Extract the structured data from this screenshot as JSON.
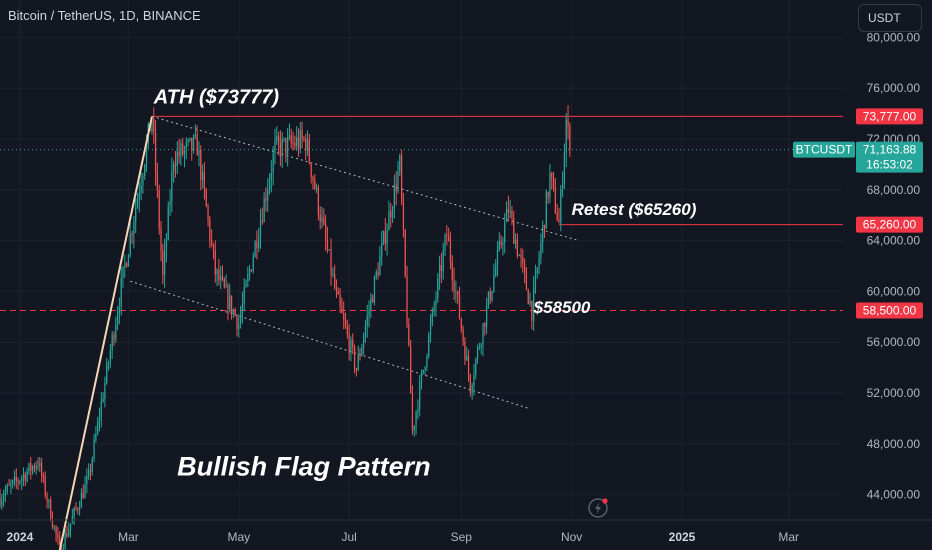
{
  "header": {
    "title": "Bitcoin / TetherUS, 1D, BINANCE"
  },
  "currency_button": {
    "label": "USDT"
  },
  "colors": {
    "background": "#131722",
    "up": "#26a69a",
    "down": "#ef5350",
    "level": "#f23645",
    "text": "#d1d4dc",
    "pole": "#f5d5b5"
  },
  "icons": [
    "lightning-icon"
  ],
  "chart_data": {
    "type": "candlestick",
    "symbol": "BTCUSDT",
    "interval": "1D",
    "exchange": "BINANCE",
    "x_range": [
      "2023-12-21",
      "2025-03-31"
    ],
    "y_range": [
      42000,
      82000
    ],
    "y_ticks": [
      "44,000.00",
      "48,000.00",
      "52,000.00",
      "56,000.00",
      "60,000.00",
      "64,000.00",
      "68,000.00",
      "72,000.00",
      "76,000.00",
      "80,000.00"
    ],
    "x_ticks": [
      {
        "label": "2024",
        "date": "2024-01-01",
        "bold": true
      },
      {
        "label": "Mar",
        "date": "2024-03-01"
      },
      {
        "label": "May",
        "date": "2024-05-01"
      },
      {
        "label": "Jul",
        "date": "2024-07-01"
      },
      {
        "label": "Sep",
        "date": "2024-09-01"
      },
      {
        "label": "Nov",
        "date": "2024-11-01"
      },
      {
        "label": "2025",
        "date": "2025-01-01",
        "bold": true
      },
      {
        "label": "Mar",
        "date": "2025-03-01"
      }
    ],
    "key_points": [
      {
        "date": "2023-12-21",
        "price": 43800
      },
      {
        "date": "2024-01-11",
        "price": 46600
      },
      {
        "date": "2024-01-23",
        "price": 39600
      },
      {
        "date": "2024-02-08",
        "price": 45300
      },
      {
        "date": "2024-02-28",
        "price": 62000
      },
      {
        "date": "2024-03-14",
        "price": 73777
      },
      {
        "date": "2024-03-20",
        "price": 61000
      },
      {
        "date": "2024-03-26",
        "price": 70600
      },
      {
        "date": "2024-04-08",
        "price": 71500
      },
      {
        "date": "2024-04-18",
        "price": 61500
      },
      {
        "date": "2024-05-01",
        "price": 57500
      },
      {
        "date": "2024-05-21",
        "price": 71200
      },
      {
        "date": "2024-06-07",
        "price": 71900
      },
      {
        "date": "2024-06-24",
        "price": 59500
      },
      {
        "date": "2024-07-05",
        "price": 53900
      },
      {
        "date": "2024-07-29",
        "price": 69900
      },
      {
        "date": "2024-08-05",
        "price": 49000
      },
      {
        "date": "2024-08-24",
        "price": 64500
      },
      {
        "date": "2024-09-06",
        "price": 52600
      },
      {
        "date": "2024-09-27",
        "price": 66500
      },
      {
        "date": "2024-10-10",
        "price": 58500
      },
      {
        "date": "2024-10-20",
        "price": 69000
      },
      {
        "date": "2024-10-25",
        "price": 65260
      },
      {
        "date": "2024-10-29",
        "price": 73500
      },
      {
        "date": "2024-10-31",
        "price": 71163.88
      }
    ],
    "horizontal_levels": [
      {
        "price": 73777,
        "label": "73,777.00",
        "style": "solid"
      },
      {
        "price": 65260,
        "label": "65,260.00",
        "style": "solid"
      },
      {
        "price": 58500,
        "label": "58,500.00",
        "style": "dashed"
      }
    ],
    "last_price": {
      "symbol": "BTCUSDT",
      "price": 71163.88,
      "label": "71,163.88",
      "countdown": "16:53:02"
    },
    "channel": {
      "upper": [
        {
          "date": "2024-03-14",
          "price": 73777
        },
        {
          "date": "2024-11-05",
          "price": 64000
        }
      ],
      "lower": [
        {
          "date": "2024-03-02",
          "price": 60800
        },
        {
          "date": "2024-10-08",
          "price": 50800
        }
      ]
    },
    "flagpole": [
      {
        "date": "2024-01-23",
        "price": 39600
      },
      {
        "date": "2024-03-14",
        "price": 73777
      }
    ],
    "annotations": [
      {
        "text": "ATH ($73777)",
        "date": "2024-03-15",
        "price": 74800
      },
      {
        "text": "Retest ($65260)",
        "date": "2024-11-01",
        "price": 66000
      },
      {
        "text": "$58500",
        "date": "2024-10-11",
        "price": 58300
      },
      {
        "text": "Bullish Flag Pattern",
        "date": "2024-06-06",
        "price": 45500
      }
    ]
  }
}
